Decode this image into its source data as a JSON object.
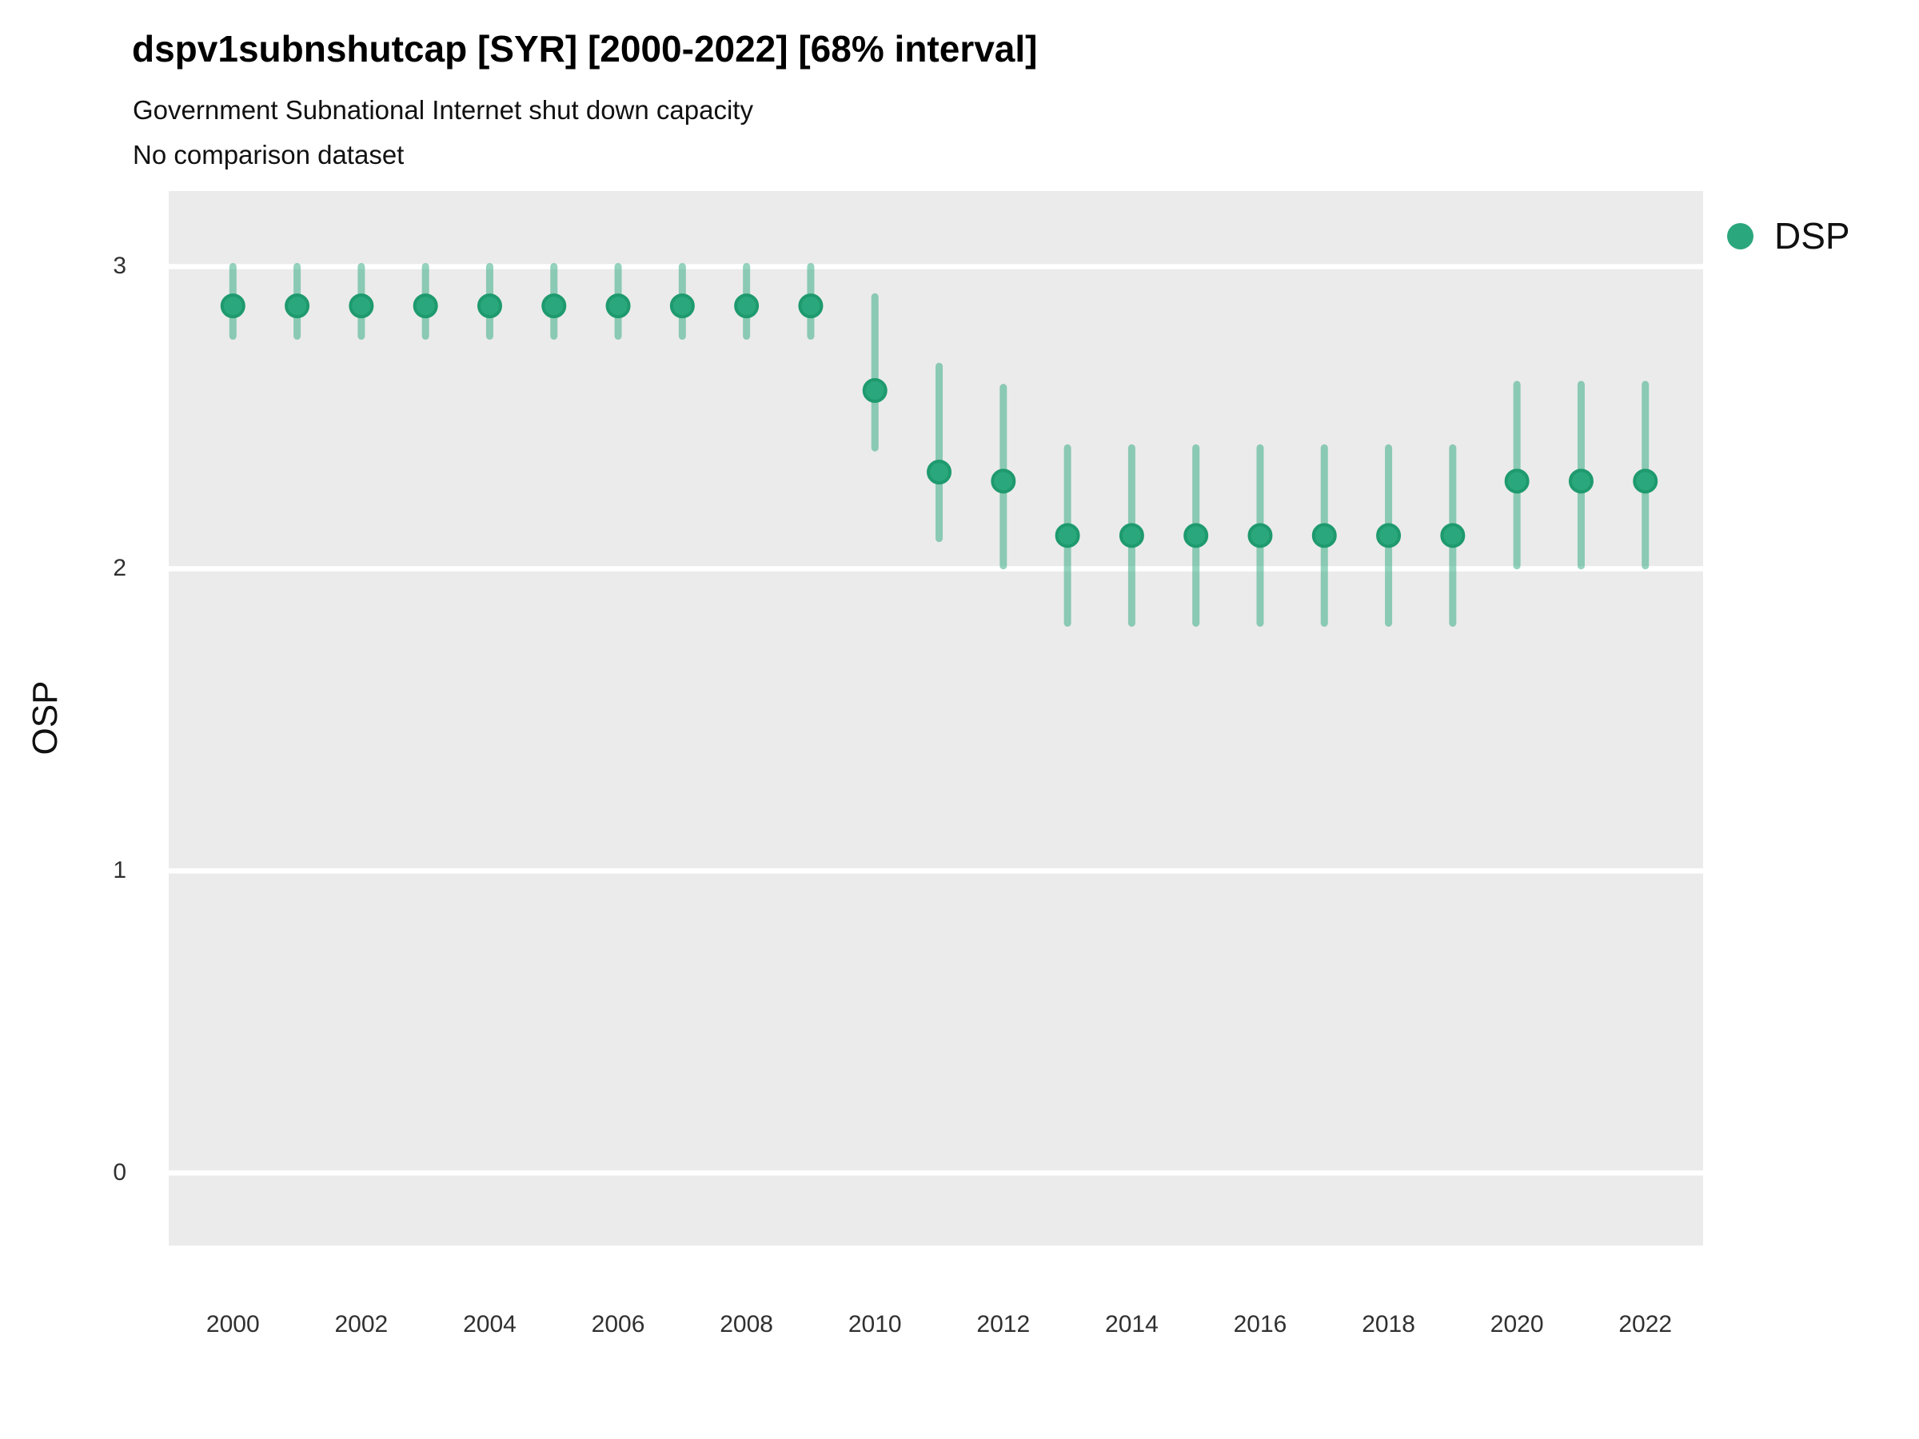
{
  "header": {
    "title": "dspv1subnshutcap [SYR] [2000-2022] [68% interval]",
    "subtitle": "Government Subnational Internet shut down capacity",
    "note": "No comparison dataset"
  },
  "axes": {
    "y_title": "OSP",
    "x_title": ""
  },
  "legend": {
    "items": [
      {
        "label": "DSP",
        "color": "#2aa77c"
      }
    ]
  },
  "colors": {
    "point": "#2aa77c",
    "point_stroke": "#1e9a6e",
    "interval": "rgba(42,167,124,0.5)",
    "panel_bg": "#ebebeb",
    "grid": "#ffffff",
    "text": "#303030"
  },
  "chart_data": {
    "type": "pointrange",
    "title": "dspv1subnshutcap [SYR] [2000-2022] [68% interval]",
    "subtitle": "Government Subnational Internet shut down capacity",
    "note": "No comparison dataset",
    "xlabel": "",
    "ylabel": "OSP",
    "interval_level": "68%",
    "legend_position": "right",
    "grid": "horizontal-major-only",
    "x": [
      2000,
      2001,
      2002,
      2003,
      2004,
      2005,
      2006,
      2007,
      2008,
      2009,
      2010,
      2011,
      2012,
      2013,
      2014,
      2015,
      2016,
      2017,
      2018,
      2019,
      2020,
      2021,
      2022
    ],
    "series": [
      {
        "name": "DSP",
        "values": [
          2.87,
          2.87,
          2.87,
          2.87,
          2.87,
          2.87,
          2.87,
          2.87,
          2.87,
          2.87,
          2.59,
          2.32,
          2.29,
          2.11,
          2.11,
          2.11,
          2.11,
          2.11,
          2.11,
          2.11,
          2.29,
          2.29,
          2.29
        ],
        "lower": [
          2.77,
          2.77,
          2.77,
          2.77,
          2.77,
          2.77,
          2.77,
          2.77,
          2.77,
          2.77,
          2.4,
          2.1,
          2.01,
          1.82,
          1.82,
          1.82,
          1.82,
          1.82,
          1.82,
          1.82,
          2.01,
          2.01,
          2.01
        ],
        "upper": [
          3.0,
          3.0,
          3.0,
          3.0,
          3.0,
          3.0,
          3.0,
          3.0,
          3.0,
          3.0,
          2.9,
          2.67,
          2.6,
          2.4,
          2.4,
          2.4,
          2.4,
          2.4,
          2.4,
          2.4,
          2.61,
          2.61,
          2.61
        ]
      }
    ],
    "xticks": [
      2000,
      2002,
      2004,
      2006,
      2008,
      2010,
      2012,
      2014,
      2016,
      2018,
      2020,
      2022
    ],
    "yticks": [
      0,
      1,
      2,
      3
    ],
    "xlim": [
      1999.0,
      2022.9
    ],
    "ylim": [
      -0.24,
      3.25
    ]
  }
}
